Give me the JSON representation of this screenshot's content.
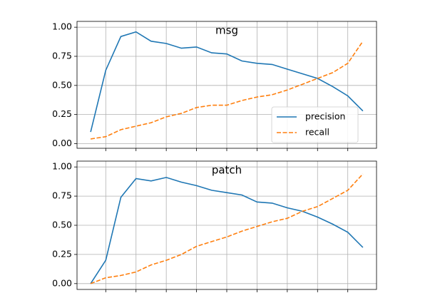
{
  "chart_data": [
    {
      "type": "line",
      "title": "msg",
      "x": [
        0.05,
        0.1,
        0.15,
        0.2,
        0.25,
        0.3,
        0.35,
        0.4,
        0.45,
        0.5,
        0.55,
        0.6,
        0.65,
        0.7,
        0.75,
        0.8,
        0.85,
        0.9,
        0.95
      ],
      "series": [
        {
          "name": "precision",
          "color": "#1f77b4",
          "dash": false,
          "values": [
            0.1,
            0.63,
            0.92,
            0.96,
            0.88,
            0.86,
            0.82,
            0.83,
            0.78,
            0.77,
            0.71,
            0.69,
            0.68,
            0.64,
            0.6,
            0.56,
            0.49,
            0.41,
            0.28
          ]
        },
        {
          "name": "recall",
          "color": "#ff7f0e",
          "dash": true,
          "values": [
            0.04,
            0.06,
            0.12,
            0.15,
            0.18,
            0.23,
            0.26,
            0.31,
            0.33,
            0.33,
            0.37,
            0.4,
            0.42,
            0.46,
            0.51,
            0.56,
            0.61,
            0.69,
            0.88
          ]
        }
      ],
      "xlim": [
        0.005,
        0.995
      ],
      "xticks": [
        0.1,
        0.2,
        0.3,
        0.4,
        0.5,
        0.6,
        0.7,
        0.8,
        0.9
      ],
      "ylim": [
        -0.04,
        1.05
      ],
      "yticks": [
        {
          "value": 0,
          "label": "0.00"
        },
        {
          "value": 0.25,
          "label": "0.25"
        },
        {
          "value": 0.5,
          "label": "0.50"
        },
        {
          "value": 0.75,
          "label": "0.75"
        },
        {
          "value": 1,
          "label": "1.00"
        }
      ],
      "grid": true,
      "legend": "lower right"
    },
    {
      "type": "line",
      "title": "patch",
      "x": [
        0.05,
        0.1,
        0.15,
        0.2,
        0.25,
        0.3,
        0.35,
        0.4,
        0.45,
        0.5,
        0.55,
        0.6,
        0.65,
        0.7,
        0.75,
        0.8,
        0.85,
        0.9,
        0.95
      ],
      "series": [
        {
          "name": "precision",
          "color": "#1f77b4",
          "dash": false,
          "values": [
            0.0,
            0.2,
            0.74,
            0.9,
            0.88,
            0.91,
            0.87,
            0.84,
            0.8,
            0.78,
            0.76,
            0.7,
            0.69,
            0.65,
            0.62,
            0.57,
            0.51,
            0.44,
            0.31
          ]
        },
        {
          "name": "recall",
          "color": "#ff7f0e",
          "dash": true,
          "values": [
            0.0,
            0.05,
            0.07,
            0.1,
            0.16,
            0.2,
            0.25,
            0.32,
            0.36,
            0.4,
            0.45,
            0.49,
            0.53,
            0.56,
            0.62,
            0.66,
            0.73,
            0.8,
            0.94
          ]
        }
      ],
      "xlim": [
        0.005,
        0.995
      ],
      "xticks": [
        0.1,
        0.2,
        0.3,
        0.4,
        0.5,
        0.6,
        0.7,
        0.8,
        0.9
      ],
      "ylim": [
        -0.05,
        1.05
      ],
      "yticks": [
        {
          "value": 0,
          "label": "0.00"
        },
        {
          "value": 0.25,
          "label": "0.25"
        },
        {
          "value": 0.5,
          "label": "0.50"
        },
        {
          "value": 0.75,
          "label": "0.75"
        },
        {
          "value": 1,
          "label": "1.00"
        }
      ],
      "grid": true
    }
  ]
}
